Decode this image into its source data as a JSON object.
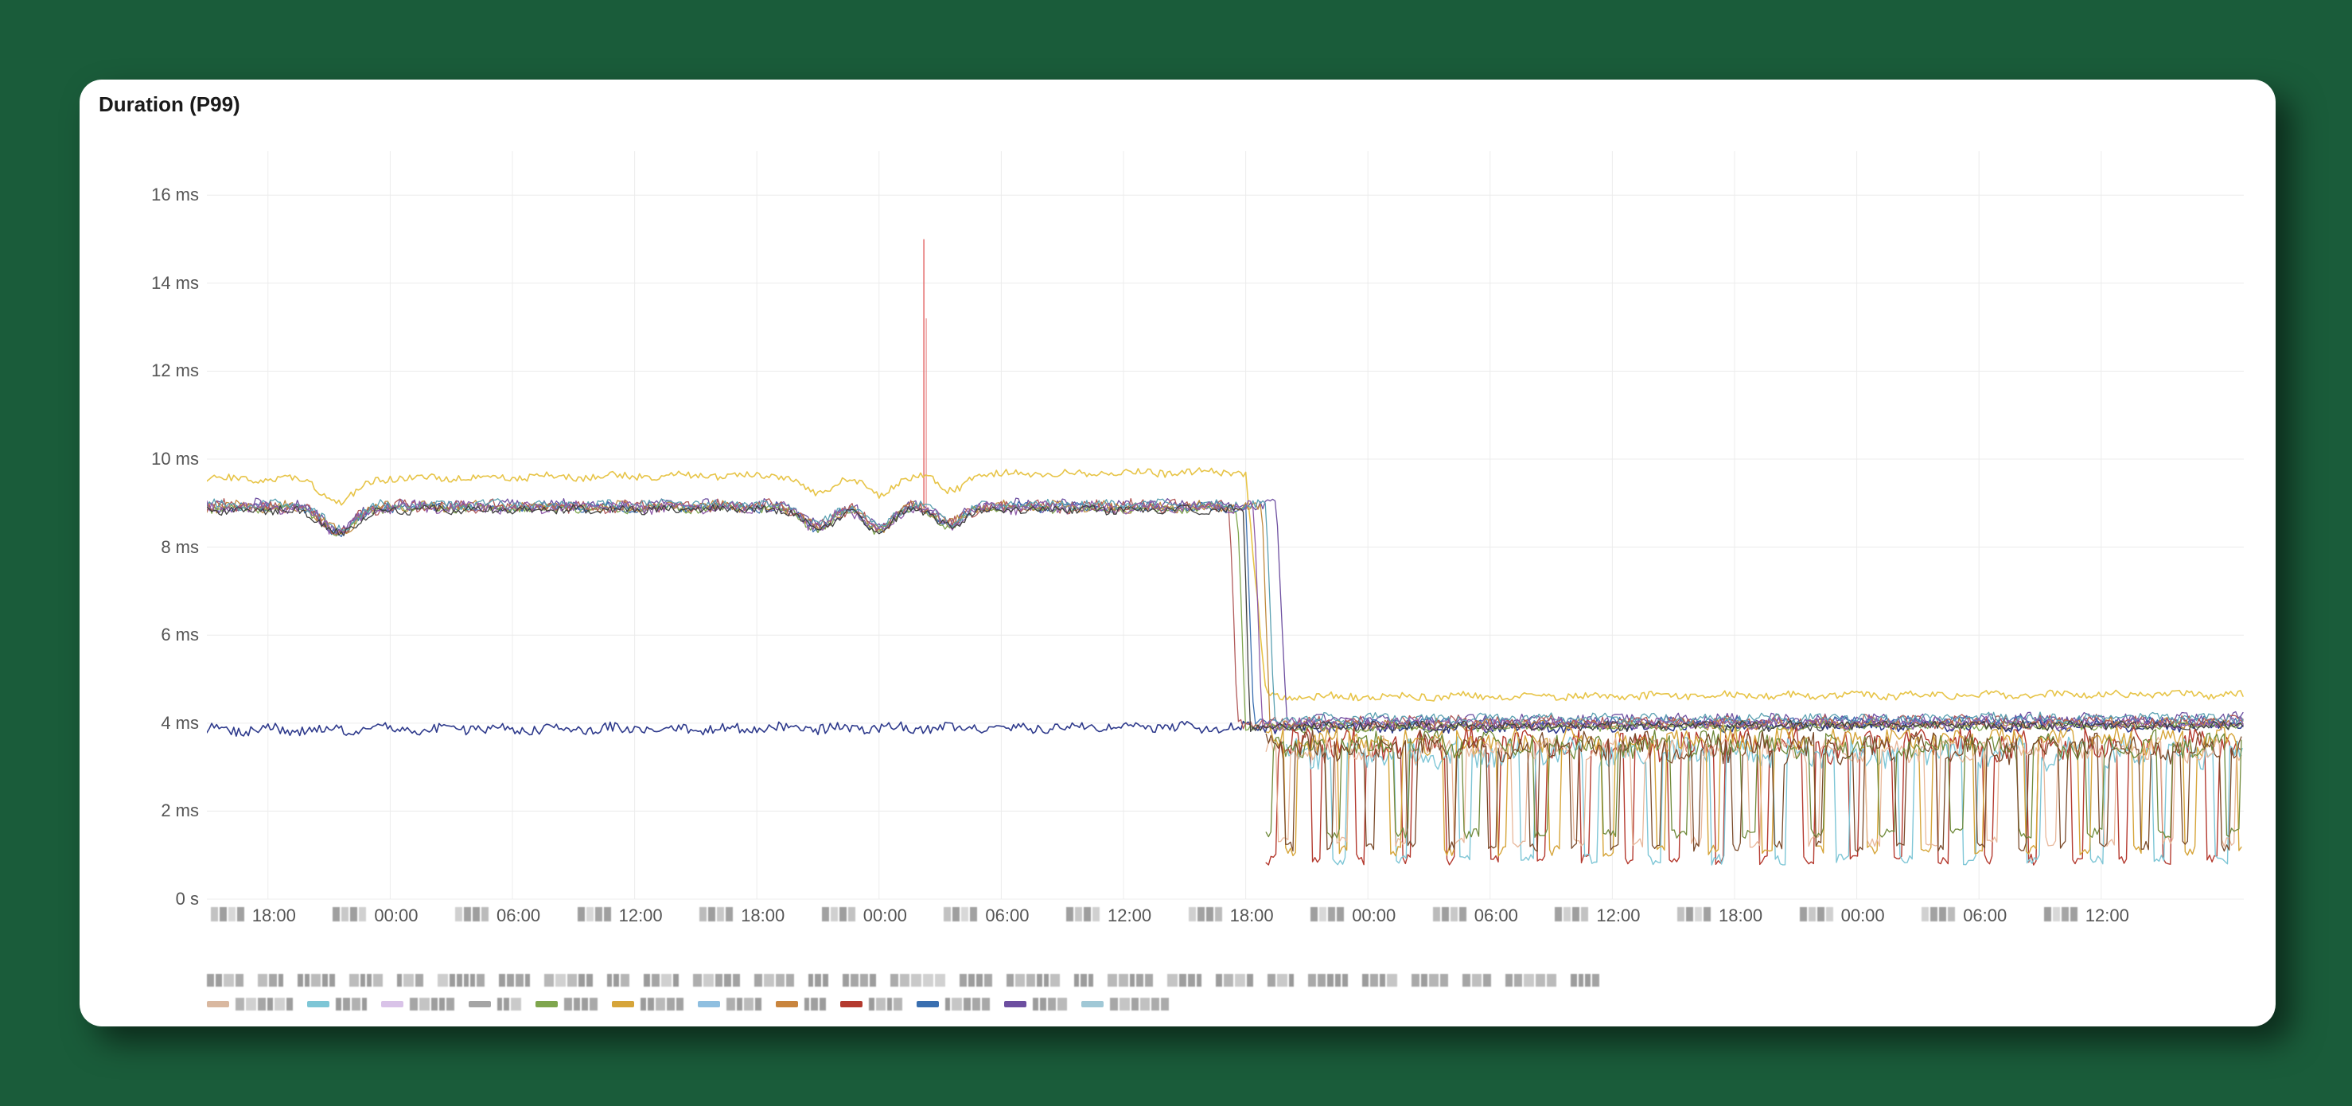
{
  "chart": {
    "type": "line-multi",
    "title": "Duration (P99)",
    "background_color": "#ffffff",
    "grid_color": "#ececec",
    "axis_text_color": "#555555",
    "title_color": "#1a1a1a",
    "title_fontsize": 26,
    "label_fontsize": 22,
    "ylim": [
      0,
      17
    ],
    "y_ticks": [
      {
        "v": 0,
        "label": "0 s"
      },
      {
        "v": 2,
        "label": "2 ms"
      },
      {
        "v": 4,
        "label": "4 ms"
      },
      {
        "v": 6,
        "label": "6 ms"
      },
      {
        "v": 8,
        "label": "8 ms"
      },
      {
        "v": 10,
        "label": "10 ms"
      },
      {
        "v": 12,
        "label": "12 ms"
      },
      {
        "v": 14,
        "label": "14 ms"
      },
      {
        "v": 16,
        "label": "16 ms"
      }
    ],
    "xlim": [
      0,
      100
    ],
    "x_ticks": [
      {
        "v": 3.0,
        "label": "18:00"
      },
      {
        "v": 9.0,
        "label": "00:00"
      },
      {
        "v": 15.0,
        "label": "06:00"
      },
      {
        "v": 21.0,
        "label": "12:00"
      },
      {
        "v": 27.0,
        "label": "18:00"
      },
      {
        "v": 33.0,
        "label": "00:00"
      },
      {
        "v": 39.0,
        "label": "06:00"
      },
      {
        "v": 45.0,
        "label": "12:00"
      },
      {
        "v": 51.0,
        "label": "18:00"
      },
      {
        "v": 57.0,
        "label": "00:00"
      },
      {
        "v": 63.0,
        "label": "06:00"
      },
      {
        "v": 69.0,
        "label": "12:00"
      },
      {
        "v": 75.0,
        "label": "18:00"
      },
      {
        "v": 81.0,
        "label": "00:00"
      },
      {
        "v": 87.0,
        "label": "06:00"
      },
      {
        "v": 93.0,
        "label": "12:00"
      }
    ],
    "x_vgrid": [
      3,
      9,
      15,
      21,
      27,
      33,
      39,
      45,
      51,
      57,
      63,
      69,
      75,
      81,
      87,
      93
    ],
    "spike": {
      "x": 35.2,
      "y_top": 15.0,
      "color": "#e57373",
      "width": 1.6
    },
    "series": [
      {
        "name": "series-yellow-upper",
        "color": "#e7c447",
        "width": 1.6,
        "noise_amp": 0.08,
        "noise_freq": 2.8,
        "segments": [
          {
            "x0": 0,
            "x1": 51,
            "y0": 9.55,
            "y1": 9.7
          },
          {
            "x0": 51,
            "x1": 52,
            "y0": 9.7,
            "y1": 4.6
          },
          {
            "x0": 52,
            "x1": 100,
            "y0": 4.6,
            "y1": 4.65
          }
        ]
      },
      {
        "name": "series-navy-lower",
        "color": "#2e3a8c",
        "width": 1.6,
        "noise_amp": 0.11,
        "noise_freq": 3.2,
        "segments": [
          {
            "x0": 0,
            "x1": 100,
            "y0": 3.85,
            "y1": 3.95
          }
        ]
      },
      {
        "name": "band-a",
        "color": "#6d4fa0",
        "width": 1.3,
        "noise_amp": 0.12,
        "noise_freq": 3.6,
        "segments": [
          {
            "x0": 0,
            "x1": 52.5,
            "y0": 8.95,
            "y1": 8.95
          },
          {
            "x0": 52.5,
            "x1": 53.0,
            "y0": 8.95,
            "y1": 4.05
          },
          {
            "x0": 53.0,
            "x1": 100,
            "y0": 4.05,
            "y1": 4.1
          }
        ]
      },
      {
        "name": "band-b",
        "color": "#3a6fb0",
        "width": 1.3,
        "noise_amp": 0.1,
        "noise_freq": 3.1,
        "segments": [
          {
            "x0": 0,
            "x1": 51.0,
            "y0": 8.9,
            "y1": 8.9
          },
          {
            "x0": 51.0,
            "x1": 51.4,
            "y0": 8.9,
            "y1": 4.0
          },
          {
            "x0": 51.4,
            "x1": 100,
            "y0": 4.0,
            "y1": 4.05
          }
        ]
      },
      {
        "name": "band-c",
        "color": "#c08a3e",
        "width": 1.3,
        "noise_amp": 0.11,
        "noise_freq": 3.8,
        "segments": [
          {
            "x0": 0,
            "x1": 51.8,
            "y0": 8.92,
            "y1": 8.92
          },
          {
            "x0": 51.8,
            "x1": 52.2,
            "y0": 8.92,
            "y1": 3.95
          },
          {
            "x0": 52.2,
            "x1": 100,
            "y0": 3.95,
            "y1": 4.0
          }
        ]
      },
      {
        "name": "band-d",
        "color": "#7fa64e",
        "width": 1.3,
        "noise_amp": 0.09,
        "noise_freq": 3.0,
        "segments": [
          {
            "x0": 0,
            "x1": 50.6,
            "y0": 8.88,
            "y1": 8.88
          },
          {
            "x0": 50.6,
            "x1": 51.0,
            "y0": 8.88,
            "y1": 3.9
          },
          {
            "x0": 51.0,
            "x1": 100,
            "y0": 3.9,
            "y1": 3.95
          }
        ]
      },
      {
        "name": "band-e",
        "color": "#b15a5a",
        "width": 1.3,
        "noise_amp": 0.13,
        "noise_freq": 4.0,
        "segments": [
          {
            "x0": 0,
            "x1": 50.2,
            "y0": 8.93,
            "y1": 8.93
          },
          {
            "x0": 50.2,
            "x1": 50.6,
            "y0": 8.93,
            "y1": 4.0
          },
          {
            "x0": 50.6,
            "x1": 100,
            "y0": 4.0,
            "y1": 4.05
          }
        ]
      },
      {
        "name": "band-f",
        "color": "#5aa0b1",
        "width": 1.3,
        "noise_amp": 0.1,
        "noise_freq": 3.3,
        "segments": [
          {
            "x0": 0,
            "x1": 52.0,
            "y0": 8.97,
            "y1": 8.97
          },
          {
            "x0": 52.0,
            "x1": 52.4,
            "y0": 8.97,
            "y1": 4.1
          },
          {
            "x0": 52.4,
            "x1": 100,
            "y0": 4.1,
            "y1": 4.12
          }
        ]
      },
      {
        "name": "band-g",
        "color": "#8e5aa8",
        "width": 1.3,
        "noise_amp": 0.12,
        "noise_freq": 3.5,
        "segments": [
          {
            "x0": 0,
            "x1": 51.4,
            "y0": 8.9,
            "y1": 8.9
          },
          {
            "x0": 51.4,
            "x1": 51.8,
            "y0": 8.9,
            "y1": 3.98
          },
          {
            "x0": 51.8,
            "x1": 100,
            "y0": 3.98,
            "y1": 4.0
          }
        ]
      },
      {
        "name": "band-h",
        "color": "#3f3f3f",
        "width": 1.3,
        "noise_amp": 0.09,
        "noise_freq": 3.9,
        "segments": [
          {
            "x0": 0,
            "x1": 50.9,
            "y0": 8.85,
            "y1": 8.85
          },
          {
            "x0": 50.9,
            "x1": 51.2,
            "y0": 8.85,
            "y1": 3.92
          },
          {
            "x0": 51.2,
            "x1": 100,
            "y0": 3.92,
            "y1": 3.95
          }
        ]
      },
      {
        "name": "spiky-red",
        "color": "#b43a2f",
        "width": 1.4,
        "noise_amp": 0.0,
        "noise_freq": 0,
        "spiky": {
          "x0": 52,
          "x1": 100,
          "base": 3.5,
          "low": 0.9,
          "jitter": 0.9,
          "period": 2.2,
          "phase": 0.0
        },
        "segments": []
      },
      {
        "name": "spiky-cyan",
        "color": "#7ec6d6",
        "width": 1.4,
        "noise_amp": 0.0,
        "noise_freq": 0,
        "spiky": {
          "x0": 53,
          "x1": 100,
          "base": 3.3,
          "low": 0.9,
          "jitter": 0.8,
          "period": 3.1,
          "phase": 0.9
        },
        "segments": []
      },
      {
        "name": "spiky-gold",
        "color": "#d6a53a",
        "width": 1.4,
        "noise_amp": 0.0,
        "noise_freq": 0,
        "spiky": {
          "x0": 52,
          "x1": 100,
          "base": 3.6,
          "low": 1.1,
          "jitter": 0.7,
          "period": 2.6,
          "phase": 1.7
        },
        "segments": []
      },
      {
        "name": "spiky-peach",
        "color": "#e8b79a",
        "width": 1.3,
        "noise_amp": 0.0,
        "noise_freq": 0,
        "spiky": {
          "x0": 52,
          "x1": 100,
          "base": 3.4,
          "low": 1.3,
          "jitter": 0.6,
          "period": 2.9,
          "phase": 2.4
        },
        "segments": []
      },
      {
        "name": "spiky-olive",
        "color": "#6f8a3a",
        "width": 1.3,
        "noise_amp": 0.0,
        "noise_freq": 0,
        "spiky": {
          "x0": 52,
          "x1": 100,
          "base": 3.5,
          "low": 1.5,
          "jitter": 0.7,
          "period": 3.4,
          "phase": 0.5
        },
        "segments": []
      },
      {
        "name": "spiky-brown",
        "color": "#7a4a2a",
        "width": 1.3,
        "noise_amp": 0.0,
        "noise_freq": 0,
        "spiky": {
          "x0": 52,
          "x1": 100,
          "base": 3.45,
          "low": 1.2,
          "jitter": 0.8,
          "period": 2.0,
          "phase": 3.1
        },
        "segments": []
      }
    ],
    "dips": [
      {
        "x": 6.5,
        "depth": 0.55,
        "width": 1.6
      },
      {
        "x": 30.0,
        "depth": 0.45,
        "width": 1.4
      },
      {
        "x": 33.0,
        "depth": 0.5,
        "width": 1.3
      },
      {
        "x": 36.5,
        "depth": 0.4,
        "width": 1.2
      }
    ],
    "legend_colors": [
      "#d9b8a0",
      "#7ec6d6",
      "#d9c3e8",
      "#a5a5a5",
      "#7fa64e",
      "#d6a53a",
      "#8fbfe0",
      "#c9853e",
      "#b43a2f",
      "#3a6fb0",
      "#6d4fa0",
      "#a0c8d6"
    ],
    "xaxis_pix_variants": [
      [
        0.35,
        0.85,
        0.2,
        0.75
      ],
      [
        0.8,
        0.3,
        0.9,
        0.25
      ],
      [
        0.25,
        0.7,
        0.85,
        0.4
      ],
      [
        0.9,
        0.2,
        0.65,
        0.8
      ],
      [
        0.4,
        0.9,
        0.3,
        0.7
      ],
      [
        0.75,
        0.25,
        0.85,
        0.35
      ]
    ],
    "legend_pix_lengths": [
      4,
      3,
      5,
      4,
      3,
      6,
      4,
      5,
      3,
      4,
      5,
      4,
      3,
      4,
      5,
      4,
      6,
      3,
      5,
      4,
      4,
      3,
      5,
      4,
      4,
      3,
      5,
      4,
      6,
      4,
      3,
      5,
      4,
      4,
      5,
      3,
      4,
      5,
      4,
      3
    ]
  }
}
